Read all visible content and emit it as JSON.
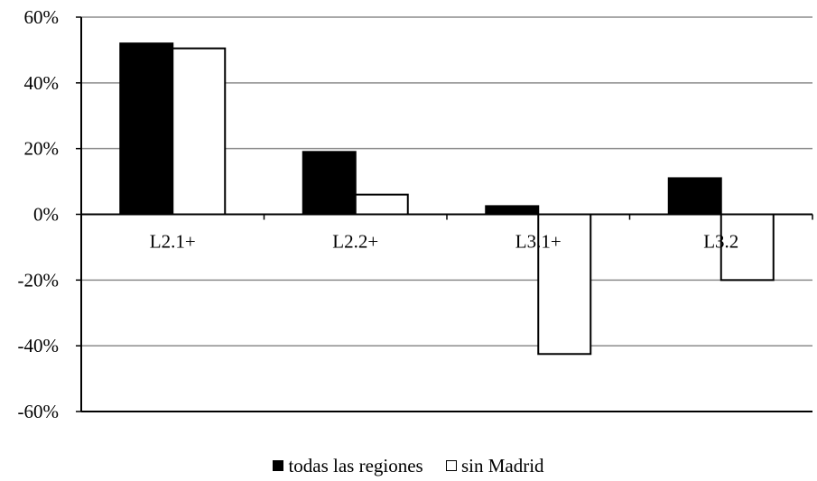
{
  "chart_data": {
    "type": "bar",
    "categories": [
      "L2.1+",
      "L2.2+",
      "L3.1+",
      "L3.2"
    ],
    "series": [
      {
        "name": "todas las regiones",
        "values": [
          52,
          19,
          2.5,
          11
        ],
        "color": "#000000"
      },
      {
        "name": "sin Madrid",
        "values": [
          50.5,
          6,
          -42.5,
          -20
        ],
        "color": "#ffffff"
      }
    ],
    "ylim": [
      -60,
      60
    ],
    "yticks": [
      "60%",
      "40%",
      "20%",
      "0%",
      "-20%",
      "-40%",
      "-60%"
    ],
    "ytick_values": [
      60,
      40,
      20,
      0,
      -20,
      -40,
      -60
    ],
    "grid": true,
    "legend_position": "bottom",
    "title": "",
    "xlabel": "",
    "ylabel": ""
  }
}
